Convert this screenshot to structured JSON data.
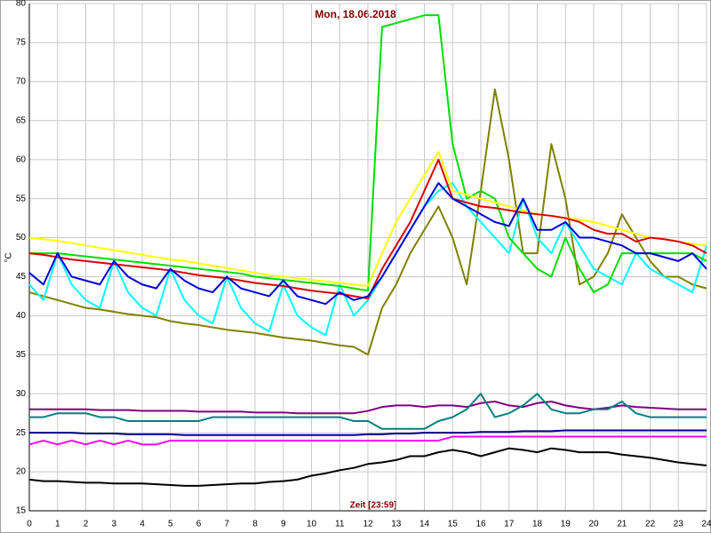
{
  "chart_data": {
    "type": "line",
    "title": "Mon, 18.06.2018",
    "x_label": "Zeit [23:59]",
    "y_label": "°C",
    "x": [
      0,
      0.5,
      1,
      1.5,
      2,
      2.5,
      3,
      3.5,
      4,
      4.5,
      5,
      5.5,
      6,
      6.5,
      7,
      7.5,
      8,
      8.5,
      9,
      9.5,
      10,
      10.5,
      11,
      11.5,
      12,
      12.5,
      13,
      13.5,
      14,
      14.5,
      15,
      15.5,
      16,
      16.5,
      17,
      17.5,
      18,
      18.5,
      19,
      19.5,
      20,
      20.5,
      21,
      21.5,
      22,
      22.5,
      23,
      23.5,
      24
    ],
    "xlim": [
      0,
      24
    ],
    "xticks": [
      0,
      1,
      2,
      3,
      4,
      5,
      6,
      7,
      8,
      9,
      10,
      11,
      12,
      13,
      14,
      15,
      16,
      17,
      18,
      19,
      20,
      21,
      22,
      23,
      24
    ],
    "ylim": [
      15,
      80
    ],
    "yticks": [
      15,
      20,
      25,
      30,
      35,
      40,
      45,
      50,
      55,
      60,
      65,
      70,
      75,
      80
    ],
    "grid": true,
    "series": [
      {
        "color": "#808000",
        "values": [
          43,
          42.5,
          42,
          41.5,
          41,
          40.8,
          40.5,
          40.2,
          40,
          39.8,
          39.3,
          39,
          38.8,
          38.5,
          38.2,
          38,
          37.8,
          37.5,
          37.2,
          37,
          36.8,
          36.5,
          36.2,
          36,
          35,
          41,
          44,
          48,
          51,
          54,
          50,
          44,
          56,
          69,
          60,
          48,
          48,
          62,
          55,
          44,
          45,
          48,
          53,
          50,
          47,
          45,
          45,
          44,
          43.5
        ]
      },
      {
        "color": "#00ffff",
        "values": [
          44,
          42,
          48,
          44,
          42,
          41,
          47,
          43,
          41,
          40,
          46,
          42,
          40,
          39,
          45,
          41,
          39,
          38,
          44,
          40,
          38.5,
          37.5,
          44,
          40,
          42,
          45,
          48,
          51,
          54,
          56,
          57,
          54,
          52,
          50,
          48,
          55,
          50,
          48,
          52,
          49,
          46,
          45,
          44,
          48,
          46,
          45,
          44,
          43,
          49
        ]
      },
      {
        "color": "#00dd00",
        "values": [
          48,
          48,
          48,
          47.8,
          47.6,
          47.4,
          47.2,
          47,
          46.8,
          46.6,
          46.4,
          46.2,
          46,
          45.8,
          45.6,
          45.4,
          45,
          44.8,
          44.6,
          44.4,
          44.2,
          44,
          43.8,
          43.5,
          43.2,
          77,
          77.5,
          78,
          78.5,
          78.5,
          62,
          55,
          56,
          55,
          50,
          48,
          46,
          45,
          50,
          46,
          43,
          44,
          48,
          48,
          48,
          48,
          48,
          48,
          47
        ]
      },
      {
        "color": "#ffff00",
        "values": [
          50,
          49.8,
          49.6,
          49.3,
          49,
          48.7,
          48.4,
          48.1,
          47.8,
          47.5,
          47.2,
          47,
          46.7,
          46.4,
          46.1,
          45.8,
          45.5,
          45.2,
          45,
          44.8,
          44.6,
          44.4,
          44.2,
          44,
          43.8,
          48,
          52,
          55,
          58,
          61,
          56,
          55.5,
          55,
          54.5,
          54,
          53.5,
          53,
          52.8,
          52.5,
          52.3,
          52,
          51.5,
          51,
          50.5,
          50,
          49.8,
          49.5,
          49.2,
          49
        ]
      },
      {
        "color": "#dd0000",
        "values": [
          48,
          47.8,
          47.5,
          47.2,
          47,
          46.8,
          46.6,
          46.4,
          46.2,
          46,
          45.8,
          45.5,
          45.2,
          45,
          44.8,
          44.5,
          44.2,
          44,
          43.8,
          43.5,
          43.2,
          43,
          42.8,
          42.5,
          42.2,
          46,
          49,
          52,
          56,
          60,
          55,
          54.5,
          54,
          53.8,
          53.5,
          53.2,
          53,
          52.8,
          52.5,
          52,
          51,
          50.5,
          50.5,
          49.5,
          50,
          49.8,
          49.5,
          49,
          48
        ]
      },
      {
        "color": "#0000dd",
        "values": [
          45.5,
          44,
          48,
          45,
          44.5,
          44,
          47,
          45,
          44,
          43.5,
          46,
          44.5,
          43.5,
          43,
          45,
          43.5,
          43,
          42.5,
          44.5,
          42.5,
          42,
          41.5,
          43,
          42,
          42.5,
          45,
          48,
          51,
          54,
          57,
          55,
          54,
          53,
          52,
          51.5,
          55,
          51,
          51,
          52,
          50,
          50,
          49.5,
          49,
          48,
          48,
          47.5,
          47,
          48,
          46
        ]
      },
      {
        "color": "#800080",
        "values": [
          28,
          28,
          28,
          28,
          28,
          27.9,
          27.9,
          27.9,
          27.8,
          27.8,
          27.8,
          27.8,
          27.7,
          27.7,
          27.7,
          27.7,
          27.6,
          27.6,
          27.6,
          27.5,
          27.5,
          27.5,
          27.5,
          27.5,
          27.8,
          28.3,
          28.5,
          28.5,
          28.3,
          28.5,
          28.5,
          28.3,
          28.8,
          29,
          28.5,
          28.3,
          28.8,
          29,
          28.5,
          28.2,
          28,
          28.2,
          28.5,
          28.3,
          28.2,
          28.1,
          28,
          28,
          28
        ]
      },
      {
        "color": "#008080",
        "values": [
          27,
          27,
          27.5,
          27.5,
          27.5,
          27,
          27,
          26.5,
          26.5,
          26.5,
          26.5,
          26.5,
          26.5,
          27,
          27,
          27,
          27,
          27,
          27,
          27,
          27,
          27,
          27,
          26.5,
          26.5,
          25.5,
          25.5,
          25.5,
          25.5,
          26.5,
          27,
          28,
          30,
          27,
          27.5,
          28.5,
          30,
          28,
          27.5,
          27.5,
          28,
          28,
          29,
          27.5,
          27,
          27,
          27,
          27,
          27
        ]
      },
      {
        "color": "#000080",
        "values": [
          25,
          25,
          25,
          25,
          24.9,
          24.9,
          24.9,
          24.8,
          24.8,
          24.8,
          24.8,
          24.7,
          24.7,
          24.7,
          24.7,
          24.7,
          24.7,
          24.7,
          24.7,
          24.7,
          24.7,
          24.7,
          24.7,
          24.7,
          24.8,
          24.8,
          24.9,
          24.9,
          25,
          25,
          25,
          25,
          25.1,
          25.1,
          25.1,
          25.2,
          25.2,
          25.2,
          25.3,
          25.3,
          25.3,
          25.3,
          25.3,
          25.3,
          25.3,
          25.3,
          25.3,
          25.3,
          25.3
        ]
      },
      {
        "color": "#ff00ff",
        "values": [
          23.5,
          24,
          23.5,
          24,
          23.5,
          24,
          23.5,
          24,
          23.5,
          23.5,
          24,
          24,
          24,
          24,
          24,
          24,
          24,
          24,
          24,
          24,
          24,
          24,
          24,
          24,
          24,
          24,
          24,
          24,
          24,
          24,
          24.5,
          24.5,
          24.5,
          24.5,
          24.5,
          24.5,
          24.5,
          24.5,
          24.5,
          24.5,
          24.5,
          24.5,
          24.5,
          24.5,
          24.5,
          24.5,
          24.5,
          24.5,
          24.5
        ]
      },
      {
        "color": "#000000",
        "values": [
          19,
          18.8,
          18.8,
          18.7,
          18.6,
          18.6,
          18.5,
          18.5,
          18.5,
          18.4,
          18.3,
          18.2,
          18.2,
          18.3,
          18.4,
          18.5,
          18.5,
          18.7,
          18.8,
          19,
          19.5,
          19.8,
          20.2,
          20.5,
          21,
          21.2,
          21.5,
          22,
          22,
          22.5,
          22.8,
          22.5,
          22,
          22.5,
          23,
          22.8,
          22.5,
          23,
          22.8,
          22.5,
          22.5,
          22.5,
          22.2,
          22,
          21.8,
          21.5,
          21.2,
          21,
          20.8
        ]
      }
    ]
  }
}
